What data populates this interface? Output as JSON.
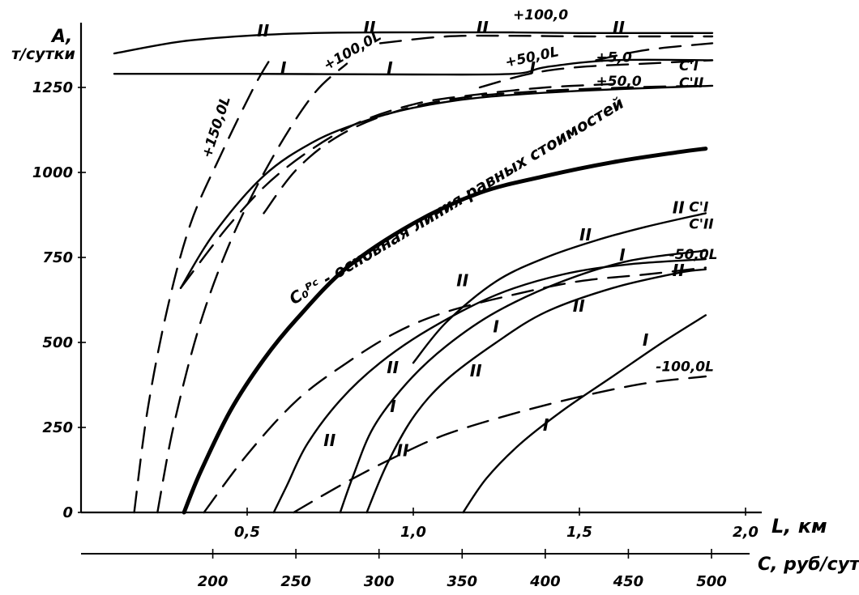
{
  "chart_data": {
    "type": "line",
    "title": "",
    "ylabel_line1": "А,",
    "ylabel_line2": "т/сутки",
    "xlabel": "L, км",
    "x2label": "С, руб/сут",
    "xlim": [
      0.0,
      2.0
    ],
    "ylim": [
      0,
      1300
    ],
    "y_ticks": [
      {
        "value": 0,
        "label": "0"
      },
      {
        "value": 250,
        "label": "250"
      },
      {
        "value": 500,
        "label": "500"
      },
      {
        "value": 750,
        "label": "750"
      },
      {
        "value": 1000,
        "label": "1000"
      },
      {
        "value": 1250,
        "label": "1250"
      }
    ],
    "x_ticks": [
      {
        "value": 0.5,
        "label": "0,5"
      },
      {
        "value": 1.0,
        "label": "1,0"
      },
      {
        "value": 1.5,
        "label": "1,5"
      },
      {
        "value": 2.0,
        "label": "2,0"
      }
    ],
    "x2_ticks": [
      {
        "value": 200,
        "label": "200"
      },
      {
        "value": 250,
        "label": "250"
      },
      {
        "value": 300,
        "label": "300"
      },
      {
        "value": 350,
        "label": "350"
      },
      {
        "value": 400,
        "label": "400"
      },
      {
        "value": 450,
        "label": "450"
      },
      {
        "value": 500,
        "label": "500"
      }
    ],
    "x2lim": [
      150,
      500
    ],
    "series": [
      {
        "style": "thick",
        "x": [
          0.31,
          0.36,
          0.45,
          0.55,
          0.65,
          0.8,
          1.0,
          1.2,
          1.4,
          1.6,
          1.8,
          1.88
        ],
        "y": [
          0,
          120,
          300,
          450,
          570,
          720,
          850,
          940,
          990,
          1030,
          1060,
          1070
        ]
      },
      {
        "style": "dash",
        "x": [
          0.16,
          0.2,
          0.26,
          0.33,
          0.42,
          0.52,
          0.58
        ],
        "y": [
          0,
          300,
          600,
          850,
          1050,
          1250,
          1350
        ]
      },
      {
        "style": "dash",
        "x": [
          0.23,
          0.28,
          0.36,
          0.46,
          0.58,
          0.7,
          0.8
        ],
        "y": [
          0,
          260,
          560,
          820,
          1050,
          1230,
          1320
        ]
      },
      {
        "style": "dash",
        "x": [
          0.37,
          0.5,
          0.65,
          0.8,
          0.95,
          1.1,
          1.3,
          1.5,
          1.7,
          1.88
        ],
        "y": [
          0,
          170,
          330,
          440,
          530,
          590,
          640,
          680,
          700,
          720
        ]
      },
      {
        "style": "dash",
        "x": [
          0.64,
          0.8,
          0.96,
          1.1,
          1.3,
          1.5,
          1.7,
          1.88
        ],
        "y": [
          0,
          90,
          170,
          230,
          290,
          340,
          380,
          400
        ]
      },
      {
        "style": "dash",
        "x": [
          0.3,
          0.45,
          0.6,
          0.8,
          1.0,
          1.2,
          1.4,
          1.6
        ],
        "y": [
          660,
          850,
          1000,
          1130,
          1200,
          1230,
          1250,
          1260
        ]
      },
      {
        "style": "dash",
        "x": [
          0.55,
          0.65,
          0.78,
          0.95,
          1.15,
          1.4,
          1.65,
          1.88
        ],
        "y": [
          880,
          1010,
          1110,
          1180,
          1220,
          1240,
          1250,
          1255
        ]
      },
      {
        "style": "solid",
        "x": [
          0.3,
          0.4,
          0.55,
          0.7,
          0.85,
          1.0,
          1.2,
          1.5,
          1.9
        ],
        "y": [
          660,
          820,
          990,
          1090,
          1150,
          1190,
          1220,
          1240,
          1255
        ]
      },
      {
        "style": "solid",
        "x": [
          0.58,
          0.62,
          0.68,
          0.78,
          0.9,
          1.05,
          1.25,
          1.45,
          1.65,
          1.88
        ],
        "y": [
          0,
          80,
          200,
          330,
          440,
          540,
          640,
          700,
          730,
          745
        ]
      },
      {
        "style": "solid",
        "x": [
          0.78,
          0.82,
          0.88,
          0.98,
          1.1,
          1.25,
          1.45,
          1.65,
          1.88
        ],
        "y": [
          0,
          110,
          250,
          380,
          490,
          590,
          680,
          740,
          770
        ]
      },
      {
        "style": "solid",
        "x": [
          0.86,
          0.92,
          1.0,
          1.1,
          1.25,
          1.4,
          1.6,
          1.8,
          1.88
        ],
        "y": [
          0,
          140,
          280,
          390,
          500,
          590,
          660,
          705,
          715
        ]
      },
      {
        "style": "solid",
        "x": [
          1.15,
          1.22,
          1.32,
          1.45,
          1.6,
          1.75,
          1.88
        ],
        "y": [
          0,
          100,
          200,
          300,
          400,
          500,
          580
        ]
      },
      {
        "style": "solid",
        "x": [
          1.0,
          1.1,
          1.25,
          1.4,
          1.55,
          1.7,
          1.88
        ],
        "y": [
          440,
          560,
          680,
          750,
          800,
          840,
          880
        ]
      },
      {
        "style": "solid",
        "x": [
          0.1,
          0.3,
          0.5,
          0.7,
          0.9,
          1.1,
          1.3,
          1.5,
          1.7,
          1.9
        ],
        "y": [
          1350,
          1385,
          1402,
          1410,
          1412,
          1412,
          1412,
          1410,
          1410,
          1410
        ]
      },
      {
        "style": "solid",
        "x": [
          0.1,
          0.5,
          1.0,
          1.3,
          1.4,
          1.6,
          1.9
        ],
        "y": [
          1290,
          1290,
          1288,
          1290,
          1310,
          1330,
          1330
        ]
      },
      {
        "style": "dash",
        "x": [
          0.9,
          1.1,
          1.3,
          1.5,
          1.7,
          1.9
        ],
        "y": [
          1380,
          1400,
          1402,
          1400,
          1400,
          1400
        ]
      },
      {
        "style": "dash",
        "x": [
          1.2,
          1.35,
          1.5,
          1.7,
          1.9
        ],
        "y": [
          1250,
          1290,
          1310,
          1320,
          1330
        ]
      },
      {
        "style": "dash",
        "x": [
          1.55,
          1.7,
          1.9
        ],
        "y": [
          1330,
          1360,
          1380
        ]
      }
    ],
    "annotations": [
      {
        "text": "С₀ᴾᶜ - основная линия равных стоимостей",
        "x": 0.64,
        "y": 610
      },
      {
        "text": "+100,0",
        "x": 1.3,
        "y": 1450
      },
      {
        "text": "+100,0L",
        "x": 0.74,
        "y": 1300
      },
      {
        "text": "+50,0L",
        "x": 1.28,
        "y": 1310
      },
      {
        "text": "+5,0",
        "x": 1.55,
        "y": 1325
      },
      {
        "text": "+50,0",
        "x": 1.55,
        "y": 1255
      },
      {
        "text": "+150,0L",
        "x": 0.39,
        "y": 1040
      },
      {
        "text": "-50,0L",
        "x": 1.77,
        "y": 745
      },
      {
        "text": "-100,0L",
        "x": 1.73,
        "y": 415
      },
      {
        "text": "С'I",
        "x": 1.8,
        "y": 1300
      },
      {
        "text": "С'II",
        "x": 1.8,
        "y": 1250
      },
      {
        "text": "С'I",
        "x": 1.83,
        "y": 885
      },
      {
        "text": "С'II",
        "x": 1.83,
        "y": 835
      },
      {
        "text": "II",
        "x": 0.53,
        "y": 1400
      },
      {
        "text": "II",
        "x": 0.85,
        "y": 1410
      },
      {
        "text": "II",
        "x": 1.19,
        "y": 1410
      },
      {
        "text": "II",
        "x": 1.6,
        "y": 1410
      },
      {
        "text": "I",
        "x": 0.6,
        "y": 1290
      },
      {
        "text": "I",
        "x": 0.92,
        "y": 1290
      },
      {
        "text": "I",
        "x": 1.35,
        "y": 1290
      },
      {
        "text": "II",
        "x": 1.78,
        "y": 880
      },
      {
        "text": "II",
        "x": 1.5,
        "y": 800
      },
      {
        "text": "I",
        "x": 1.62,
        "y": 740
      },
      {
        "text": "II",
        "x": 1.78,
        "y": 695
      },
      {
        "text": "II",
        "x": 1.13,
        "y": 665
      },
      {
        "text": "II",
        "x": 1.48,
        "y": 590
      },
      {
        "text": "I",
        "x": 1.24,
        "y": 530
      },
      {
        "text": "I",
        "x": 1.69,
        "y": 490
      },
      {
        "text": "II",
        "x": 0.92,
        "y": 410
      },
      {
        "text": "II",
        "x": 1.17,
        "y": 400
      },
      {
        "text": "I",
        "x": 0.93,
        "y": 295
      },
      {
        "text": "II",
        "x": 0.73,
        "y": 195
      },
      {
        "text": "II",
        "x": 0.95,
        "y": 165
      },
      {
        "text": "I",
        "x": 1.39,
        "y": 240
      }
    ]
  }
}
